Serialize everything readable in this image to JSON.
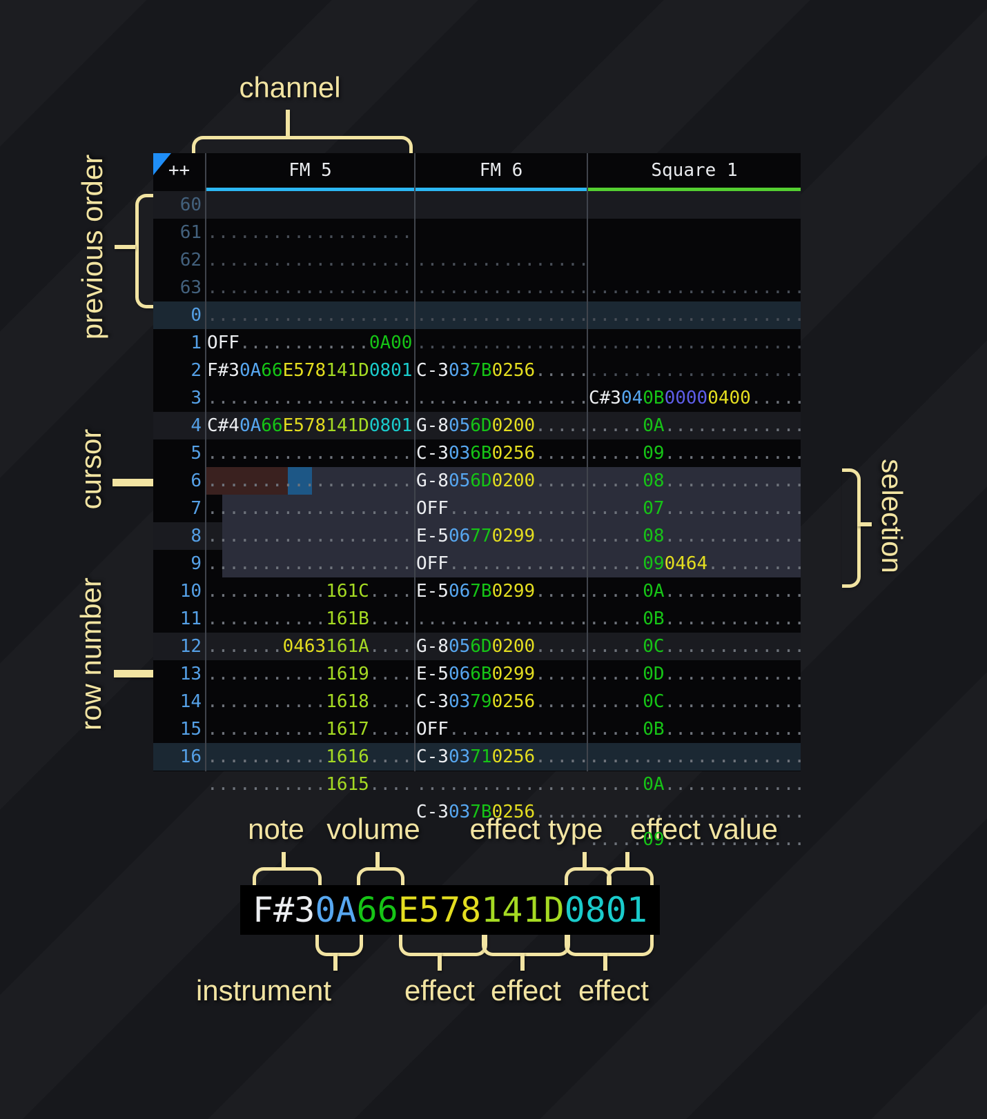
{
  "palette": {
    "annotation": "#f2e4a2",
    "note_text": "#eceef1",
    "instrument_text": "#57a7f0",
    "volume_text": "#16c416",
    "effect_yellow": "#e4de20",
    "effect_lime": "#a5da23",
    "effect_cyan": "#1acccc",
    "effect_violet": "#5e5ee9",
    "dot": "#6e737b",
    "dot_dim": "#484e57",
    "row_number": "#55a0e6",
    "row_number_previous": "#43617d",
    "channel_underline_fm": "#2cb8f4",
    "channel_underline_square": "#54cf31",
    "selection_bg": "#2b2d3a",
    "cursor_bg": "#1d5786",
    "cursor_row_bg": "#3a211f",
    "highlight_strong_bg": "#1b2833",
    "highlight_weak_bg": "#1a1b20",
    "corner_marker": "#1f8ef7"
  },
  "header": {
    "corner": "++",
    "channels": [
      {
        "name": "FM 5"
      },
      {
        "name": "FM 6"
      },
      {
        "name": "Square 1"
      }
    ]
  },
  "annotations": {
    "channel": "channel",
    "previous_order": "previous order",
    "cursor": "cursor",
    "row_number": "row number",
    "selection": "selection"
  },
  "breakdown": {
    "code": [
      [
        "F#3",
        "note"
      ],
      [
        "0A",
        "ins"
      ],
      [
        "66",
        "vol"
      ],
      [
        "E578",
        "fxy"
      ],
      [
        "141D",
        "fxl"
      ],
      [
        "0801",
        "fxc"
      ]
    ],
    "labels_top": [
      "note",
      "volume",
      "effect type",
      "effect value"
    ],
    "labels_bottom": [
      "instrument",
      "effect",
      "effect",
      "effect"
    ]
  },
  "rows": [
    {
      "n": "60",
      "prev": true,
      "hl": "weak",
      "fm5": [
        [
          "...................",
          "dim"
        ]
      ],
      "fm6": [
        [
          "................",
          "dim"
        ]
      ],
      "sq1": [
        [
          "....................",
          "dim"
        ]
      ]
    },
    {
      "n": "61",
      "prev": true,
      "hl": "",
      "fm5": [
        [
          "...................",
          "dim"
        ]
      ],
      "fm6": [
        [
          "................",
          "dim"
        ]
      ],
      "sq1": [
        [
          "....................",
          "dim"
        ]
      ]
    },
    {
      "n": "62",
      "prev": true,
      "hl": "",
      "fm5": [
        [
          "...................",
          "dim"
        ]
      ],
      "fm6": [
        [
          "................",
          "dim"
        ]
      ],
      "sq1": [
        [
          "....................",
          "dim"
        ]
      ]
    },
    {
      "n": "63",
      "prev": true,
      "hl": "",
      "fm5": [
        [
          "...................",
          "dim"
        ]
      ],
      "fm6": [
        [
          "................",
          "dim"
        ]
      ],
      "sq1": [
        [
          "....................",
          "dim"
        ]
      ]
    },
    {
      "n": "0",
      "prev": false,
      "hl": "strong",
      "fm5": [
        [
          "OFF",
          "note"
        ],
        [
          "............",
          "dot"
        ],
        [
          "0A00",
          "vol"
        ]
      ],
      "fm6": [
        [
          "C-3",
          "note"
        ],
        [
          "03",
          "ins"
        ],
        [
          "7B",
          "vol"
        ],
        [
          "0256",
          "fxy"
        ],
        [
          ".....",
          "dot"
        ]
      ],
      "sq1": [
        [
          "C#3",
          "note"
        ],
        [
          "04",
          "ins"
        ],
        [
          "0B",
          "vol"
        ],
        [
          "0000",
          "fxv"
        ],
        [
          "0400",
          "fxy"
        ],
        [
          ".....",
          "dot"
        ]
      ]
    },
    {
      "n": "1",
      "prev": false,
      "hl": "",
      "fm5": [
        [
          "F#3",
          "note"
        ],
        [
          "0A",
          "ins"
        ],
        [
          "66",
          "vol"
        ],
        [
          "E578",
          "fxy"
        ],
        [
          "141D",
          "fxl"
        ],
        [
          "0801",
          "fxc"
        ]
      ],
      "fm6": [
        [
          "................",
          "dot"
        ]
      ],
      "sq1": [
        [
          ".....",
          "dot"
        ],
        [
          "0A",
          "vol"
        ],
        [
          ".............",
          "dot"
        ]
      ]
    },
    {
      "n": "2",
      "prev": false,
      "hl": "",
      "fm5": [
        [
          "...................",
          "dot"
        ]
      ],
      "fm6": [
        [
          "G-8",
          "note"
        ],
        [
          "05",
          "ins"
        ],
        [
          "6D",
          "vol"
        ],
        [
          "0200",
          "fxy"
        ],
        [
          ".....",
          "dot"
        ]
      ],
      "sq1": [
        [
          ".....",
          "dot"
        ],
        [
          "09",
          "vol"
        ],
        [
          ".............",
          "dot"
        ]
      ]
    },
    {
      "n": "3",
      "prev": false,
      "hl": "",
      "fm5": [
        [
          "C#4",
          "note"
        ],
        [
          "0A",
          "ins"
        ],
        [
          "66",
          "vol"
        ],
        [
          "E578",
          "fxy"
        ],
        [
          "141D",
          "fxl"
        ],
        [
          "0801",
          "fxc"
        ]
      ],
      "fm6": [
        [
          "C-3",
          "note"
        ],
        [
          "03",
          "ins"
        ],
        [
          "6B",
          "vol"
        ],
        [
          "0256",
          "fxy"
        ],
        [
          ".....",
          "dot"
        ]
      ],
      "sq1": [
        [
          ".....",
          "dot"
        ],
        [
          "08",
          "vol"
        ],
        [
          ".............",
          "dot"
        ]
      ]
    },
    {
      "n": "4",
      "prev": false,
      "hl": "weak",
      "fm5": [
        [
          "...................",
          "dot"
        ]
      ],
      "fm6": [
        [
          "G-8",
          "note"
        ],
        [
          "05",
          "ins"
        ],
        [
          "6D",
          "vol"
        ],
        [
          "0200",
          "fxy"
        ],
        [
          ".....",
          "dot"
        ]
      ],
      "sq1": [
        [
          ".....",
          "dot"
        ],
        [
          "07",
          "vol"
        ],
        [
          ".............",
          "dot"
        ]
      ]
    },
    {
      "n": "5",
      "prev": false,
      "hl": "",
      "fm5": [
        [
          "...................",
          "dot"
        ]
      ],
      "fm6": [
        [
          "OFF",
          "note"
        ],
        [
          ".............",
          "dot"
        ]
      ],
      "sq1": [
        [
          ".....",
          "dot"
        ],
        [
          "08",
          "vol"
        ],
        [
          ".............",
          "dot"
        ]
      ]
    },
    {
      "n": "6",
      "prev": false,
      "hl": "",
      "fm5": [
        [
          "...................",
          "dot"
        ]
      ],
      "fm6": [
        [
          "E-5",
          "note"
        ],
        [
          "06",
          "ins"
        ],
        [
          "77",
          "vol"
        ],
        [
          "0299",
          "fxy"
        ],
        [
          ".....",
          "dot"
        ]
      ],
      "sq1": [
        [
          ".....",
          "dot"
        ],
        [
          "09",
          "vol"
        ],
        [
          "0464",
          "fxy"
        ],
        [
          ".........",
          "dot"
        ]
      ]
    },
    {
      "n": "7",
      "prev": false,
      "hl": "",
      "fm5": [
        [
          "...................",
          "dot"
        ]
      ],
      "fm6": [
        [
          "OFF",
          "note"
        ],
        [
          ".............",
          "dot"
        ]
      ],
      "sq1": [
        [
          ".....",
          "dot"
        ],
        [
          "0A",
          "vol"
        ],
        [
          ".............",
          "dot"
        ]
      ]
    },
    {
      "n": "8",
      "prev": false,
      "hl": "weak",
      "fm5": [
        [
          "...................",
          "dot"
        ]
      ],
      "fm6": [
        [
          "E-5",
          "note"
        ],
        [
          "06",
          "ins"
        ],
        [
          "7B",
          "vol"
        ],
        [
          "0299",
          "fxy"
        ],
        [
          ".....",
          "dot"
        ]
      ],
      "sq1": [
        [
          ".....",
          "dot"
        ],
        [
          "0B",
          "vol"
        ],
        [
          ".............",
          "dot"
        ]
      ]
    },
    {
      "n": "9",
      "prev": false,
      "hl": "",
      "fm5": [
        [
          "...........",
          "dot"
        ],
        [
          "161C",
          "fxl"
        ],
        [
          "....",
          "dot"
        ]
      ],
      "fm6": [
        [
          "................",
          "dot"
        ]
      ],
      "sq1": [
        [
          ".....",
          "dot"
        ],
        [
          "0C",
          "vol"
        ],
        [
          ".............",
          "dot"
        ]
      ]
    },
    {
      "n": "10",
      "prev": false,
      "hl": "",
      "fm5": [
        [
          "...........",
          "dot"
        ],
        [
          "161B",
          "fxl"
        ],
        [
          "....",
          "dot"
        ]
      ],
      "fm6": [
        [
          "G-8",
          "note"
        ],
        [
          "05",
          "ins"
        ],
        [
          "6D",
          "vol"
        ],
        [
          "0200",
          "fxy"
        ],
        [
          ".....",
          "dot"
        ]
      ],
      "sq1": [
        [
          ".....",
          "dot"
        ],
        [
          "0D",
          "vol"
        ],
        [
          ".............",
          "dot"
        ]
      ]
    },
    {
      "n": "11",
      "prev": false,
      "hl": "",
      "fm5": [
        [
          ".......",
          "dot"
        ],
        [
          "0463",
          "fxy"
        ],
        [
          "161A",
          "fxl"
        ],
        [
          "....",
          "dot"
        ]
      ],
      "fm6": [
        [
          "E-5",
          "note"
        ],
        [
          "06",
          "ins"
        ],
        [
          "6B",
          "vol"
        ],
        [
          "0299",
          "fxy"
        ],
        [
          ".....",
          "dot"
        ]
      ],
      "sq1": [
        [
          ".....",
          "dot"
        ],
        [
          "0C",
          "vol"
        ],
        [
          ".............",
          "dot"
        ]
      ]
    },
    {
      "n": "12",
      "prev": false,
      "hl": "weak",
      "fm5": [
        [
          "...........",
          "dot"
        ],
        [
          "1619",
          "fxl"
        ],
        [
          "....",
          "dot"
        ]
      ],
      "fm6": [
        [
          "C-3",
          "note"
        ],
        [
          "03",
          "ins"
        ],
        [
          "79",
          "vol"
        ],
        [
          "0256",
          "fxy"
        ],
        [
          ".....",
          "dot"
        ]
      ],
      "sq1": [
        [
          ".....",
          "dot"
        ],
        [
          "0B",
          "vol"
        ],
        [
          ".............",
          "dot"
        ]
      ]
    },
    {
      "n": "13",
      "prev": false,
      "hl": "",
      "fm5": [
        [
          "...........",
          "dot"
        ],
        [
          "1618",
          "fxl"
        ],
        [
          "....",
          "dot"
        ]
      ],
      "fm6": [
        [
          "OFF",
          "note"
        ],
        [
          ".............",
          "dot"
        ]
      ],
      "sq1": [
        [
          "....................",
          "dot"
        ]
      ]
    },
    {
      "n": "14",
      "prev": false,
      "hl": "",
      "fm5": [
        [
          "...........",
          "dot"
        ],
        [
          "1617",
          "fxl"
        ],
        [
          "....",
          "dot"
        ]
      ],
      "fm6": [
        [
          "C-3",
          "note"
        ],
        [
          "03",
          "ins"
        ],
        [
          "71",
          "vol"
        ],
        [
          "0256",
          "fxy"
        ],
        [
          ".....",
          "dot"
        ]
      ],
      "sq1": [
        [
          ".....",
          "dot"
        ],
        [
          "0A",
          "vol"
        ],
        [
          ".............",
          "dot"
        ]
      ]
    },
    {
      "n": "15",
      "prev": false,
      "hl": "",
      "fm5": [
        [
          "...........",
          "dot"
        ],
        [
          "1616",
          "fxl"
        ],
        [
          "....",
          "dot"
        ]
      ],
      "fm6": [
        [
          "................",
          "dot"
        ]
      ],
      "sq1": [
        [
          "....................",
          "dot"
        ]
      ]
    },
    {
      "n": "16",
      "prev": false,
      "hl": "strong",
      "fm5": [
        [
          "...........",
          "dot"
        ],
        [
          "1615",
          "fxl"
        ],
        [
          "....",
          "dot"
        ]
      ],
      "fm6": [
        [
          "C-3",
          "note"
        ],
        [
          "03",
          "ins"
        ],
        [
          "7B",
          "vol"
        ],
        [
          "0256",
          "fxy"
        ],
        [
          ".....",
          "dot"
        ]
      ],
      "sq1": [
        [
          ".....",
          "dot"
        ],
        [
          "09",
          "vol"
        ],
        [
          ".............",
          "dot"
        ]
      ]
    }
  ]
}
